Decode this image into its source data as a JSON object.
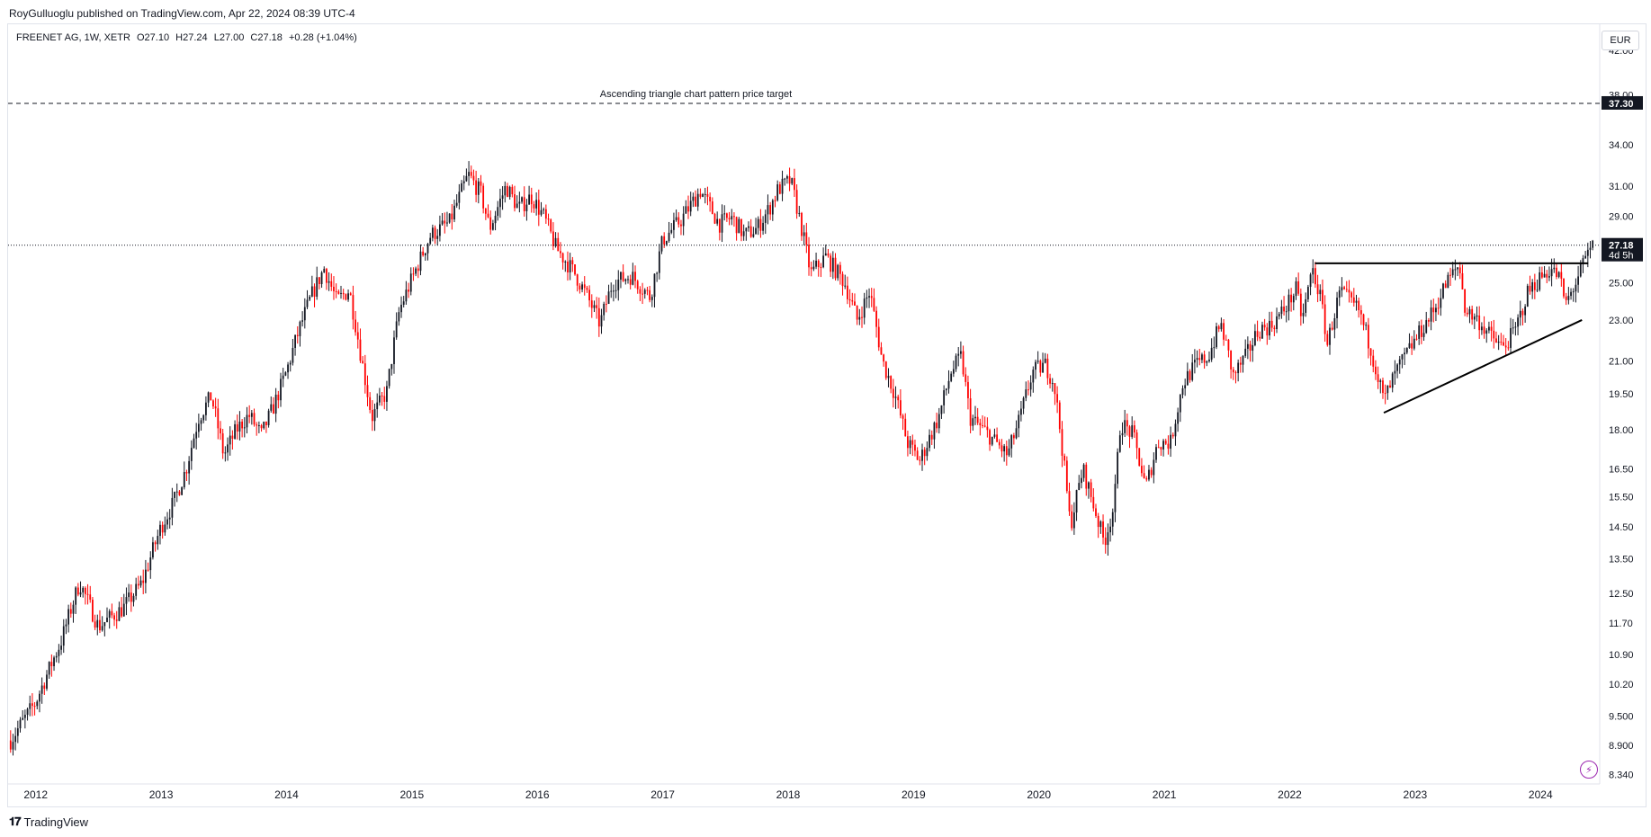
{
  "publisher": "RoyGulluoglu published on TradingView.com, Apr 22, 2024 08:39 UTC-4",
  "legend": {
    "symbol": "FREENET AG, 1W, XETR",
    "open": "O27.10",
    "high": "H27.24",
    "low": "L27.00",
    "close": "C27.18",
    "change": "+0.28 (+1.04%)"
  },
  "currency": "EUR",
  "footer_brand": "TradingView",
  "colors": {
    "up": "#131722",
    "down": "#ff0000",
    "axis_text": "#131722",
    "grid": "#e0e3eb"
  },
  "chart_data": {
    "type": "candlestick",
    "y_scale": "log",
    "ylim": [
      8.2,
      44.5
    ],
    "y_ticks": [
      "42.00",
      "38.00",
      "34.00",
      "31.00",
      "29.00",
      "25.00",
      "23.00",
      "21.00",
      "19.50",
      "18.00",
      "16.50",
      "15.50",
      "14.50",
      "13.50",
      "12.50",
      "11.70",
      "10.90",
      "10.20",
      "9.500",
      "8.900",
      "8.340"
    ],
    "x_ticks": [
      "2012",
      "2013",
      "2014",
      "2015",
      "2016",
      "2017",
      "2018",
      "2019",
      "2020",
      "2021",
      "2022",
      "2023",
      "2024"
    ],
    "xlim": [
      2011.78,
      2024.45
    ],
    "price_path": [
      [
        2011.8,
        9.0
      ],
      [
        2012.0,
        9.8
      ],
      [
        2012.2,
        11.2
      ],
      [
        2012.35,
        12.8
      ],
      [
        2012.5,
        11.6
      ],
      [
        2012.7,
        12.1
      ],
      [
        2012.85,
        12.8
      ],
      [
        2013.0,
        14.5
      ],
      [
        2013.1,
        15.3
      ],
      [
        2013.2,
        16.5
      ],
      [
        2013.3,
        18.5
      ],
      [
        2013.4,
        19.4
      ],
      [
        2013.5,
        17.0
      ],
      [
        2013.6,
        18.0
      ],
      [
        2013.7,
        18.6
      ],
      [
        2013.8,
        17.8
      ],
      [
        2013.9,
        19.0
      ],
      [
        2014.0,
        20.5
      ],
      [
        2014.1,
        22.5
      ],
      [
        2014.2,
        24.3
      ],
      [
        2014.3,
        25.8
      ],
      [
        2014.4,
        24.0
      ],
      [
        2014.5,
        24.6
      ],
      [
        2014.6,
        21.0
      ],
      [
        2014.68,
        18.5
      ],
      [
        2014.8,
        19.6
      ],
      [
        2014.9,
        23.5
      ],
      [
        2015.0,
        25.2
      ],
      [
        2015.15,
        27.8
      ],
      [
        2015.3,
        28.6
      ],
      [
        2015.45,
        31.8
      ],
      [
        2015.55,
        30.5
      ],
      [
        2015.62,
        28.2
      ],
      [
        2015.75,
        31.0
      ],
      [
        2015.85,
        29.5
      ],
      [
        2015.95,
        30.3
      ],
      [
        2016.05,
        29.0
      ],
      [
        2016.15,
        27.0
      ],
      [
        2016.3,
        25.5
      ],
      [
        2016.4,
        24.2
      ],
      [
        2016.5,
        22.8
      ],
      [
        2016.6,
        25.0
      ],
      [
        2016.75,
        25.4
      ],
      [
        2016.9,
        24.2
      ],
      [
        2017.0,
        27.5
      ],
      [
        2017.15,
        28.8
      ],
      [
        2017.3,
        30.7
      ],
      [
        2017.45,
        28.5
      ],
      [
        2017.55,
        28.9
      ],
      [
        2017.65,
        27.8
      ],
      [
        2017.75,
        28.2
      ],
      [
        2017.85,
        29.5
      ],
      [
        2017.92,
        30.8
      ],
      [
        2018.02,
        31.4
      ],
      [
        2018.1,
        28.5
      ],
      [
        2018.18,
        25.5
      ],
      [
        2018.3,
        26.5
      ],
      [
        2018.45,
        25.0
      ],
      [
        2018.55,
        23.0
      ],
      [
        2018.65,
        24.5
      ],
      [
        2018.75,
        21.0
      ],
      [
        2018.85,
        19.5
      ],
      [
        2018.95,
        17.5
      ],
      [
        2019.05,
        16.8
      ],
      [
        2019.2,
        18.5
      ],
      [
        2019.3,
        20.5
      ],
      [
        2019.38,
        21.2
      ],
      [
        2019.45,
        18.5
      ],
      [
        2019.6,
        17.8
      ],
      [
        2019.75,
        17.0
      ],
      [
        2019.85,
        18.5
      ],
      [
        2019.95,
        20.5
      ],
      [
        2020.05,
        20.8
      ],
      [
        2020.12,
        20.0
      ],
      [
        2020.18,
        17.5
      ],
      [
        2020.25,
        14.5
      ],
      [
        2020.35,
        16.5
      ],
      [
        2020.45,
        15.0
      ],
      [
        2020.52,
        14.0
      ],
      [
        2020.6,
        15.2
      ],
      [
        2020.65,
        18.3
      ],
      [
        2020.75,
        17.8
      ],
      [
        2020.85,
        15.8
      ],
      [
        2020.95,
        17.5
      ],
      [
        2021.05,
        17.5
      ],
      [
        2021.15,
        20.0
      ],
      [
        2021.25,
        20.8
      ],
      [
        2021.35,
        21.2
      ],
      [
        2021.45,
        22.8
      ],
      [
        2021.55,
        20.3
      ],
      [
        2021.65,
        21.2
      ],
      [
        2021.75,
        22.5
      ],
      [
        2021.85,
        22.7
      ],
      [
        2021.95,
        23.5
      ],
      [
        2022.05,
        24.6
      ],
      [
        2022.1,
        23.0
      ],
      [
        2022.18,
        25.8
      ],
      [
        2022.25,
        24.0
      ],
      [
        2022.3,
        21.8
      ],
      [
        2022.4,
        24.5
      ],
      [
        2022.55,
        23.5
      ],
      [
        2022.65,
        21.5
      ],
      [
        2022.75,
        19.2
      ],
      [
        2022.85,
        20.5
      ],
      [
        2022.95,
        21.5
      ],
      [
        2023.05,
        22.5
      ],
      [
        2023.15,
        23.5
      ],
      [
        2023.25,
        25.0
      ],
      [
        2023.35,
        26.0
      ],
      [
        2023.4,
        23.5
      ],
      [
        2023.5,
        23.0
      ],
      [
        2023.6,
        22.2
      ],
      [
        2023.7,
        21.6
      ],
      [
        2023.8,
        22.5
      ],
      [
        2023.9,
        24.5
      ],
      [
        2024.0,
        25.3
      ],
      [
        2024.08,
        25.8
      ],
      [
        2024.15,
        25.3
      ],
      [
        2024.2,
        23.8
      ],
      [
        2024.28,
        25.0
      ],
      [
        2024.35,
        26.2
      ],
      [
        2024.42,
        27.18
      ]
    ],
    "horizontal_levels": [
      {
        "label": "Ascending triangle chart pattern price target",
        "value": 37.3,
        "value_text": "37.30",
        "style": "dashed"
      },
      {
        "label": "",
        "value": 27.18,
        "value_text": "27.18",
        "sub_text": "4d 5h",
        "style": "dotted"
      }
    ],
    "trendlines": [
      {
        "from": [
          2022.2,
          26.1
        ],
        "to": [
          2024.38,
          26.1
        ]
      },
      {
        "from": [
          2022.75,
          18.7
        ],
        "to": [
          2024.33,
          23.0
        ]
      }
    ]
  }
}
